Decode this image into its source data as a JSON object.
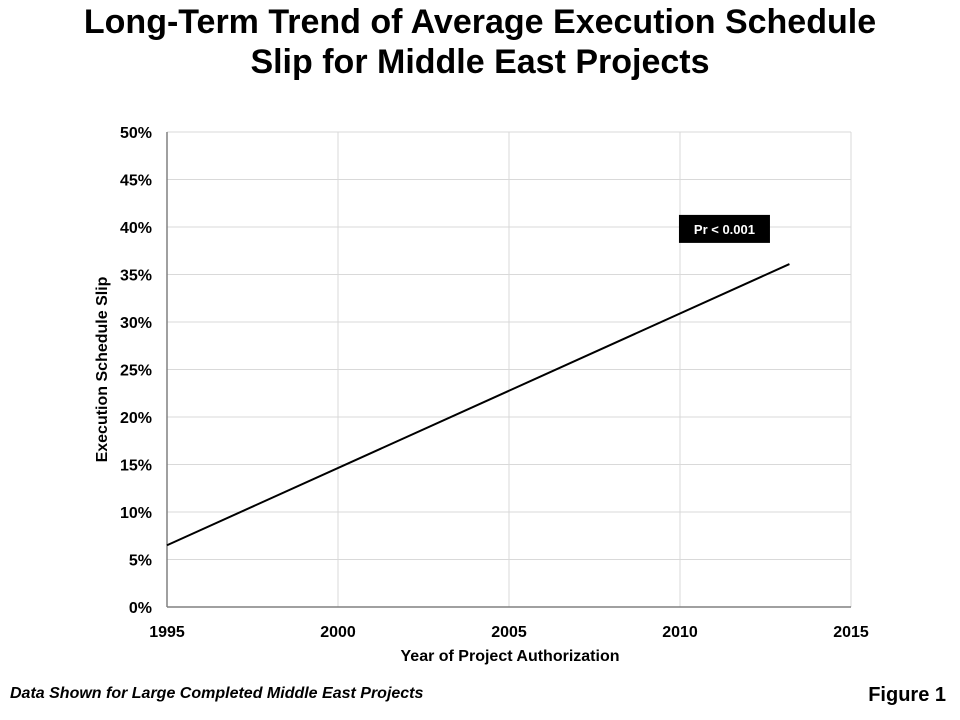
{
  "header": {
    "title_line1": "Long-Term Trend of Average Execution Schedule",
    "title_line2": "Slip for Middle East Projects"
  },
  "footer": {
    "note": "Data Shown for Large Completed Middle East Projects",
    "figure_label": "Figure 1"
  },
  "chart_data": {
    "type": "line",
    "title": "Long-Term Trend of Average Execution Schedule Slip for Middle East Projects",
    "xlabel": "Year of Project Authorization",
    "ylabel": "Execution Schedule Slip",
    "xlim": [
      1995,
      2015
    ],
    "ylim": [
      0,
      50
    ],
    "x_ticks": [
      "1995",
      "2000",
      "2005",
      "2010",
      "2015"
    ],
    "y_ticks": [
      "0%",
      "5%",
      "10%",
      "15%",
      "20%",
      "25%",
      "30%",
      "35%",
      "40%",
      "45%",
      "50%"
    ],
    "grid": true,
    "series": [
      {
        "x": [
          1995,
          2013.2
        ],
        "y": [
          6.5,
          36.1
        ],
        "color": "#000000"
      }
    ],
    "annotation": {
      "text": "Pr < 0.001",
      "x": 2011.3,
      "y": 39.8
    }
  }
}
